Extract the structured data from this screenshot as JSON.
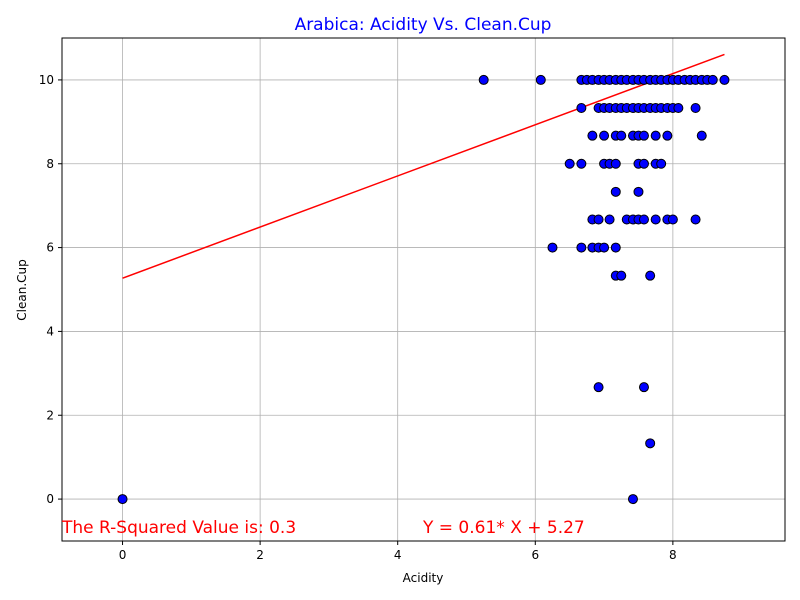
{
  "chart_data": {
    "type": "scatter",
    "title": "Arabica: Acidity Vs. Clean.Cup",
    "xlabel": "Acidity",
    "ylabel": "Clean.Cup",
    "xlim": [
      -0.88,
      9.63
    ],
    "ylim": [
      -1.0,
      11.0
    ],
    "xticks": [
      0,
      2,
      4,
      6,
      8
    ],
    "yticks": [
      0,
      2,
      4,
      6,
      8,
      10
    ],
    "grid": true,
    "colors": {
      "point_fill": "#0000ff",
      "point_edge": "#000000",
      "line": "#ff0000",
      "title": "#0000ff",
      "annotation": "#ff0000"
    },
    "points": [
      [
        0,
        0
      ],
      [
        5.25,
        10
      ],
      [
        6.08,
        10
      ],
      [
        6.25,
        6
      ],
      [
        6.5,
        8
      ],
      [
        6.67,
        8
      ],
      [
        6.67,
        9.33
      ],
      [
        6.67,
        6
      ],
      [
        6.67,
        10
      ],
      [
        6.75,
        10
      ],
      [
        6.83,
        10
      ],
      [
        6.83,
        8.67
      ],
      [
        6.83,
        6.67
      ],
      [
        6.83,
        6
      ],
      [
        6.92,
        10
      ],
      [
        6.92,
        9.33
      ],
      [
        6.92,
        6.67
      ],
      [
        6.92,
        6
      ],
      [
        6.92,
        2.67
      ],
      [
        7.0,
        10
      ],
      [
        7.0,
        9.33
      ],
      [
        7.0,
        8.67
      ],
      [
        7.0,
        8
      ],
      [
        7.0,
        6
      ],
      [
        7.08,
        10
      ],
      [
        7.08,
        9.33
      ],
      [
        7.08,
        8
      ],
      [
        7.08,
        6.67
      ],
      [
        7.17,
        10
      ],
      [
        7.17,
        9.33
      ],
      [
        7.17,
        8.67
      ],
      [
        7.17,
        8
      ],
      [
        7.17,
        7.33
      ],
      [
        7.17,
        6
      ],
      [
        7.17,
        5.33
      ],
      [
        7.25,
        10
      ],
      [
        7.25,
        9.33
      ],
      [
        7.25,
        8.67
      ],
      [
        7.25,
        5.33
      ],
      [
        7.33,
        10
      ],
      [
        7.33,
        9.33
      ],
      [
        7.33,
        6.67
      ],
      [
        7.42,
        10
      ],
      [
        7.42,
        9.33
      ],
      [
        7.42,
        8.67
      ],
      [
        7.42,
        6.67
      ],
      [
        7.42,
        0
      ],
      [
        7.5,
        10
      ],
      [
        7.5,
        9.33
      ],
      [
        7.5,
        8.67
      ],
      [
        7.5,
        8
      ],
      [
        7.5,
        7.33
      ],
      [
        7.5,
        6.67
      ],
      [
        7.58,
        10
      ],
      [
        7.58,
        9.33
      ],
      [
        7.58,
        8.67
      ],
      [
        7.58,
        8
      ],
      [
        7.58,
        6.67
      ],
      [
        7.58,
        2.67
      ],
      [
        7.67,
        10
      ],
      [
        7.67,
        9.33
      ],
      [
        7.67,
        5.33
      ],
      [
        7.67,
        1.33
      ],
      [
        7.75,
        10
      ],
      [
        7.75,
        9.33
      ],
      [
        7.75,
        8.67
      ],
      [
        7.75,
        8
      ],
      [
        7.75,
        6.67
      ],
      [
        7.83,
        10
      ],
      [
        7.83,
        9.33
      ],
      [
        7.83,
        8
      ],
      [
        7.92,
        10
      ],
      [
        7.92,
        9.33
      ],
      [
        7.92,
        8.67
      ],
      [
        7.92,
        6.67
      ],
      [
        8.0,
        10
      ],
      [
        8.0,
        9.33
      ],
      [
        8.0,
        6.67
      ],
      [
        8.08,
        10
      ],
      [
        8.08,
        9.33
      ],
      [
        8.17,
        10
      ],
      [
        8.25,
        10
      ],
      [
        8.33,
        10
      ],
      [
        8.33,
        9.33
      ],
      [
        8.33,
        6.67
      ],
      [
        8.42,
        10
      ],
      [
        8.42,
        8.67
      ],
      [
        8.5,
        10
      ],
      [
        8.58,
        10
      ],
      [
        8.75,
        10
      ]
    ],
    "regression": {
      "slope": 0.61,
      "intercept": 5.27,
      "x_range": [
        0,
        8.75
      ]
    },
    "annotations": {
      "r_squared": "The R-Squared Value is: 0.3",
      "equation": "Y = 0.61* X + 5.27"
    }
  }
}
